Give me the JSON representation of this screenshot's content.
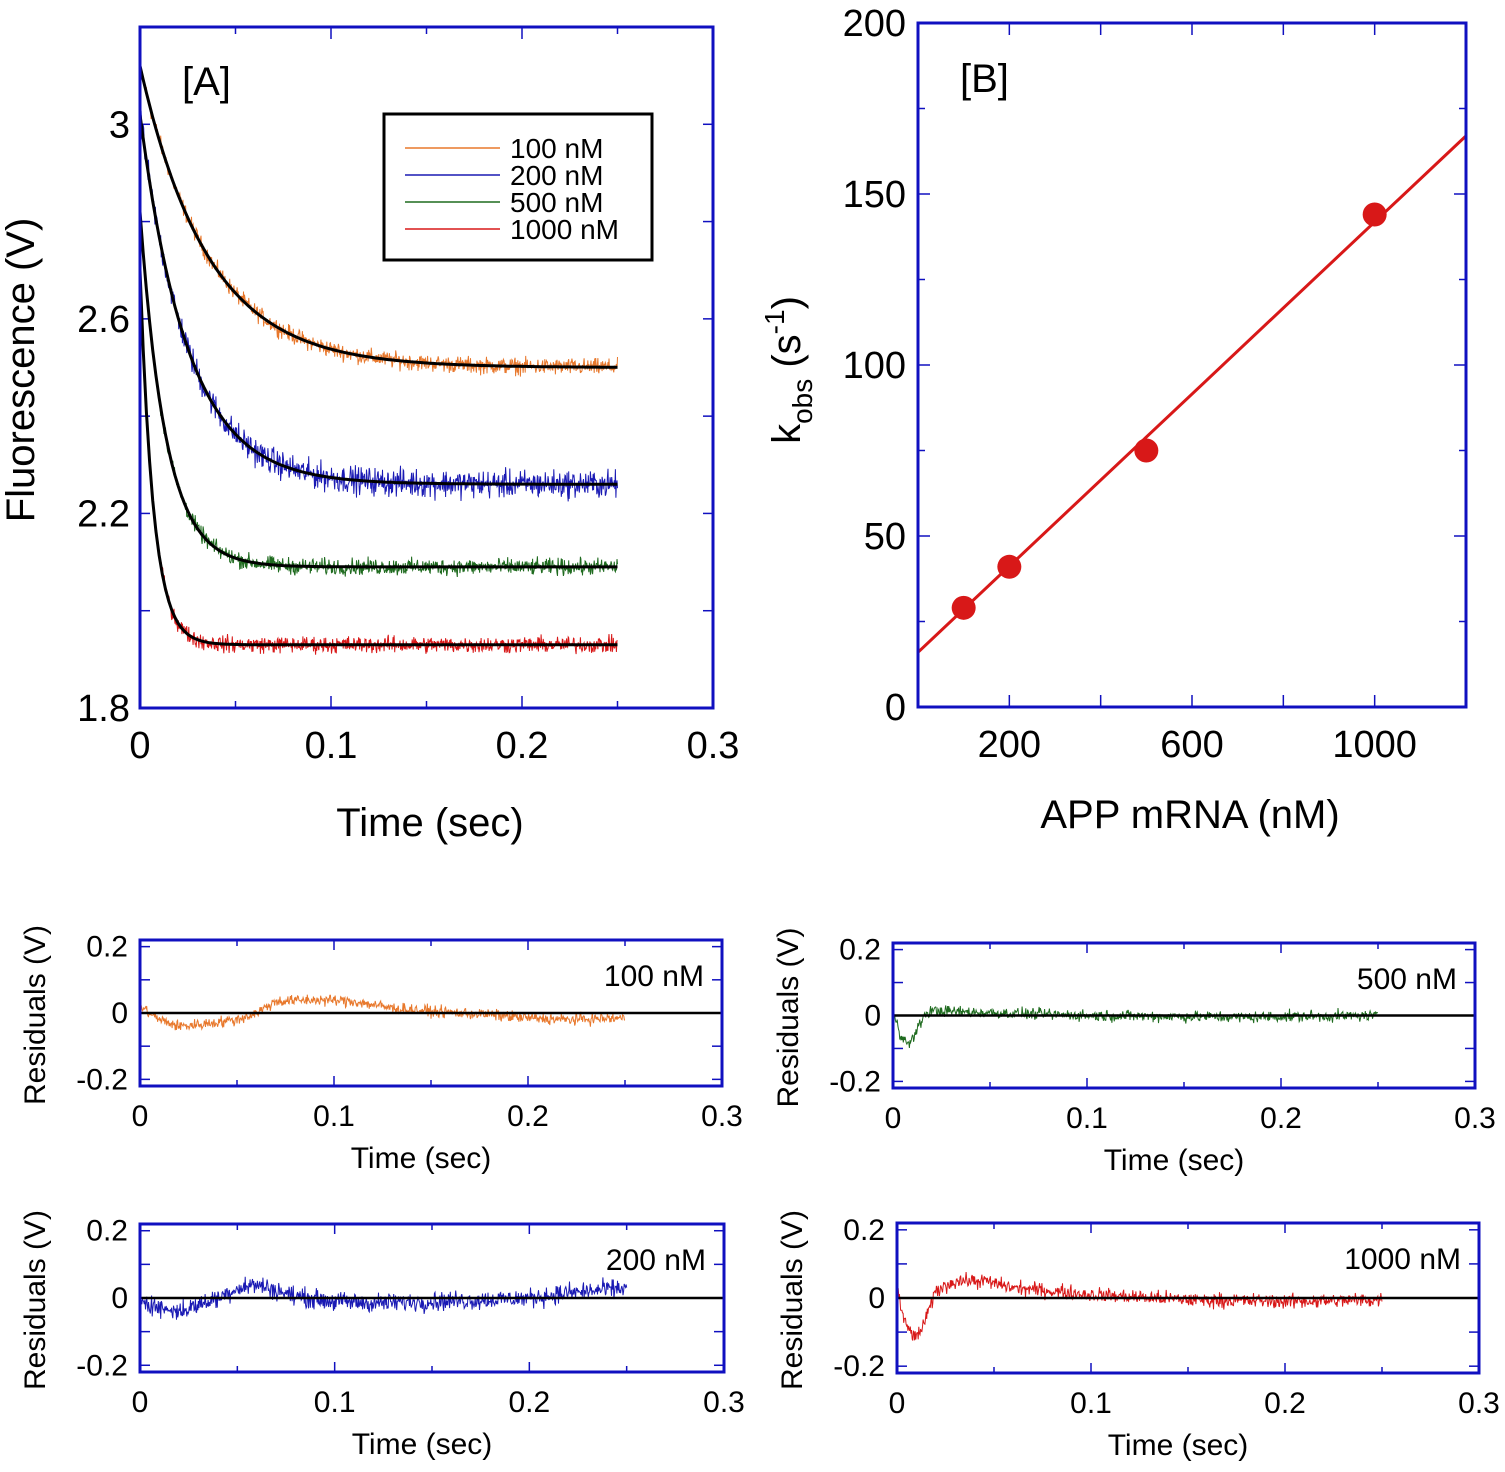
{
  "colors": {
    "frame": "#1010c0",
    "fit": "#000000",
    "orange": "#e8782c",
    "blue": "#1a1ab4",
    "green": "#1f6b1f",
    "red": "#d81818",
    "lineB": "#d81818"
  },
  "chart_data": [
    {
      "id": "A",
      "type": "line",
      "panel_label": "[A]",
      "xlabel": "Time (sec)",
      "ylabel": "Fluorescence (V)",
      "xlim": [
        0,
        0.3
      ],
      "ylim": [
        1.8,
        3.2
      ],
      "xticks": [
        0,
        0.1,
        0.2,
        0.3
      ],
      "xtick_labels": [
        "0",
        "0.1",
        "0.2",
        "0.3"
      ],
      "yticks": [
        1.8,
        2.2,
        2.6,
        3.0
      ],
      "ytick_labels": [
        "1.8",
        "2.2",
        "2.6",
        "3"
      ],
      "legend_position": "top-right",
      "series": [
        {
          "name": "100 nM",
          "color": "orange",
          "start": 3.12,
          "plateau": 2.5,
          "k": 28,
          "noise": 0.012,
          "t_end": 0.25
        },
        {
          "name": "200 nM",
          "color": "blue",
          "start": 3.02,
          "plateau": 2.26,
          "k": 40,
          "noise": 0.02,
          "t_end": 0.25
        },
        {
          "name": "500 nM",
          "color": "green",
          "start": 2.82,
          "plateau": 2.09,
          "k": 74,
          "noise": 0.012,
          "t_end": 0.25
        },
        {
          "name": "1000 nM",
          "color": "red",
          "start": 2.7,
          "plateau": 1.93,
          "k": 143,
          "noise": 0.012,
          "t_end": 0.25
        }
      ]
    },
    {
      "id": "B",
      "type": "scatter",
      "panel_label": "[B]",
      "xlabel": "APP mRNA (nM)",
      "ylabel_main": "k",
      "ylabel_sub": "obs",
      "ylabel_rest": " (s",
      "ylabel_sup": "-1",
      "ylabel_end": ")",
      "xlim": [
        0,
        1200
      ],
      "ylim": [
        0,
        200
      ],
      "xticks": [
        200,
        600,
        1000
      ],
      "xtick_labels": [
        "200",
        "600",
        "1000"
      ],
      "yticks": [
        0,
        50,
        100,
        150,
        200
      ],
      "ytick_labels": [
        "0",
        "50",
        "100",
        "150",
        "200"
      ],
      "points": [
        {
          "x": 100,
          "y": 29
        },
        {
          "x": 200,
          "y": 41
        },
        {
          "x": 500,
          "y": 75
        },
        {
          "x": 1000,
          "y": 144
        }
      ],
      "fit_line": {
        "x": [
          0,
          1200
        ],
        "y": [
          16,
          167
        ]
      }
    },
    {
      "id": "R100",
      "type": "line",
      "xlabel": "Time (sec)",
      "ylabel": "Residuals (V)",
      "label": "100 nM",
      "color": "orange",
      "xlim": [
        0,
        0.3
      ],
      "ylim": [
        -0.22,
        0.22
      ],
      "xticks": [
        0,
        0.1,
        0.2,
        0.3
      ],
      "xtick_labels": [
        "0",
        "0.1",
        "0.2",
        "0.3"
      ],
      "yticks": [
        -0.2,
        0,
        0.2
      ],
      "ytick_labels": [
        "-0.2",
        "0",
        "0.2"
      ],
      "profile": {
        "t": [
          0,
          0.01,
          0.02,
          0.03,
          0.05,
          0.06,
          0.07,
          0.09,
          0.11,
          0.13,
          0.15,
          0.18,
          0.2,
          0.22,
          0.25
        ],
        "r": [
          0.02,
          -0.02,
          -0.04,
          -0.035,
          -0.02,
          0,
          0.035,
          0.04,
          0.035,
          0.015,
          0.005,
          -0.005,
          -0.015,
          -0.02,
          -0.015
        ]
      },
      "noise": 0.012,
      "t_end": 0.25
    },
    {
      "id": "R500",
      "type": "line",
      "xlabel": "Time (sec)",
      "ylabel": "Residuals (V)",
      "label": "500 nM",
      "color": "green",
      "xlim": [
        0,
        0.3
      ],
      "ylim": [
        -0.22,
        0.22
      ],
      "xticks": [
        0,
        0.1,
        0.2,
        0.3
      ],
      "xtick_labels": [
        "0",
        "0.1",
        "0.2",
        "0.3"
      ],
      "yticks": [
        -0.2,
        0,
        0.2
      ],
      "ytick_labels": [
        "-0.2",
        "0",
        "0.2"
      ],
      "profile": {
        "t": [
          0,
          0.004,
          0.008,
          0.012,
          0.016,
          0.02,
          0.04,
          0.1,
          0.18,
          0.25
        ],
        "r": [
          0.02,
          -0.06,
          -0.09,
          -0.05,
          0.0,
          0.015,
          0.01,
          0.0,
          -0.005,
          0.0
        ]
      },
      "noise": 0.012,
      "t_end": 0.25
    },
    {
      "id": "R200",
      "type": "line",
      "xlabel": "Time (sec)",
      "ylabel": "Residuals (V)",
      "label": "200 nM",
      "color": "blue",
      "xlim": [
        0,
        0.3
      ],
      "ylim": [
        -0.22,
        0.22
      ],
      "xticks": [
        0,
        0.1,
        0.2,
        0.3
      ],
      "xtick_labels": [
        "0",
        "0.1",
        "0.2",
        "0.3"
      ],
      "yticks": [
        -0.2,
        0,
        0.2
      ],
      "ytick_labels": [
        "-0.2",
        "0",
        "0.2"
      ],
      "profile": {
        "t": [
          0,
          0.01,
          0.02,
          0.03,
          0.04,
          0.05,
          0.06,
          0.08,
          0.1,
          0.12,
          0.15,
          0.18,
          0.2,
          0.22,
          0.25
        ],
        "r": [
          0.0,
          -0.03,
          -0.04,
          -0.02,
          0.0,
          0.03,
          0.04,
          0.005,
          -0.01,
          -0.015,
          -0.01,
          -0.005,
          0.0,
          0.015,
          0.03
        ]
      },
      "noise": 0.02,
      "t_end": 0.25
    },
    {
      "id": "R1000",
      "type": "line",
      "xlabel": "Time (sec)",
      "ylabel": "Residuals (V)",
      "label": "1000 nM",
      "color": "red",
      "xlim": [
        0,
        0.3
      ],
      "ylim": [
        -0.22,
        0.22
      ],
      "xticks": [
        0,
        0.1,
        0.2,
        0.3
      ],
      "xtick_labels": [
        "0",
        "0.1",
        "0.2",
        "0.3"
      ],
      "yticks": [
        -0.2,
        0,
        0.2
      ],
      "ytick_labels": [
        "-0.2",
        "0",
        "0.2"
      ],
      "profile": {
        "t": [
          0,
          0.003,
          0.006,
          0.01,
          0.015,
          0.02,
          0.03,
          0.045,
          0.06,
          0.1,
          0.15,
          0.2,
          0.25
        ],
        "r": [
          0.04,
          -0.06,
          -0.09,
          -0.12,
          -0.06,
          0.02,
          0.05,
          0.05,
          0.03,
          0.01,
          -0.005,
          -0.01,
          -0.005
        ]
      },
      "noise": 0.015,
      "t_end": 0.25
    }
  ]
}
